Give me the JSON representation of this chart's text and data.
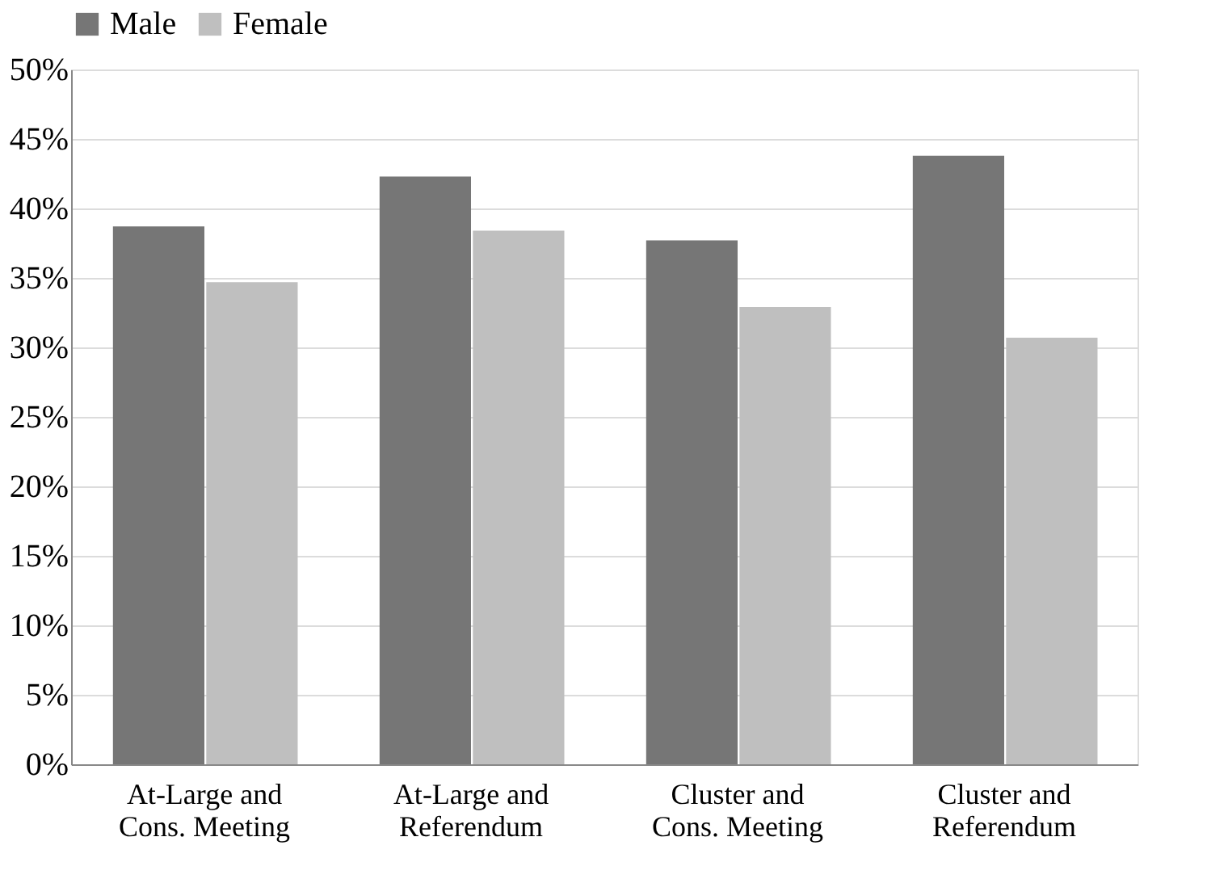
{
  "chart_data": {
    "type": "bar",
    "categories": [
      "At-Large and\nCons. Meeting",
      "At-Large and\nReferendum",
      "Cluster and\nCons. Meeting",
      "Cluster and\nReferendum"
    ],
    "series": [
      {
        "name": "Male",
        "color": "#767676",
        "values": [
          38.7,
          42.3,
          37.7,
          43.8
        ]
      },
      {
        "name": "Female",
        "color": "#bfbfbf",
        "values": [
          34.7,
          38.4,
          32.9,
          30.7
        ]
      }
    ],
    "ylim": [
      0,
      50
    ],
    "yticks": [
      {
        "value": 0,
        "label": "0%"
      },
      {
        "value": 5,
        "label": "5%"
      },
      {
        "value": 10,
        "label": "10%"
      },
      {
        "value": 15,
        "label": "15%"
      },
      {
        "value": 20,
        "label": "20%"
      },
      {
        "value": 25,
        "label": "25%"
      },
      {
        "value": 30,
        "label": "30%"
      },
      {
        "value": 35,
        "label": "35%"
      },
      {
        "value": 40,
        "label": "40%"
      },
      {
        "value": 45,
        "label": "45%"
      },
      {
        "value": 50,
        "label": "50%"
      }
    ],
    "grid": "y",
    "legend": "top"
  }
}
